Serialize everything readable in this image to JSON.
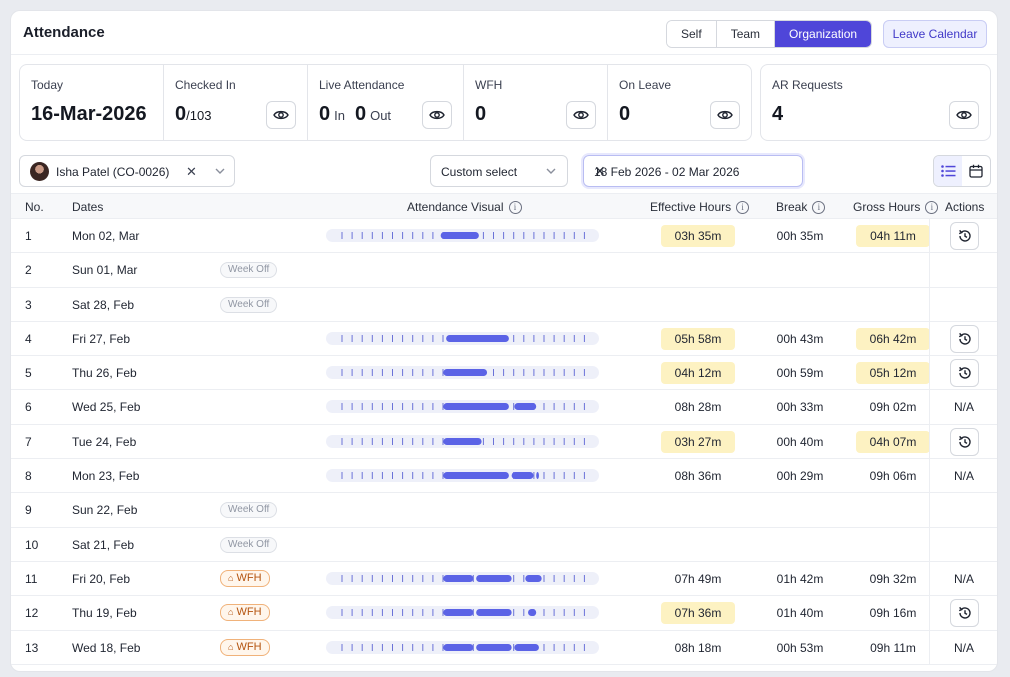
{
  "header": {
    "title": "Attendance",
    "tabs": [
      {
        "label": "Self",
        "active": false
      },
      {
        "label": "Team",
        "active": false
      },
      {
        "label": "Organization",
        "active": true
      }
    ],
    "leave_calendar_label": "Leave Calendar"
  },
  "stats": {
    "today": {
      "label": "Today",
      "value": "16-Mar-2026"
    },
    "checked_in": {
      "label": "Checked In",
      "value": "0",
      "total": "/103"
    },
    "live": {
      "label": "Live Attendance",
      "in_value": "0",
      "in_label": "In",
      "out_value": "0",
      "out_label": "Out"
    },
    "wfh": {
      "label": "WFH",
      "value": "0"
    },
    "on_leave": {
      "label": "On Leave",
      "value": "0"
    },
    "ar_requests": {
      "label": "AR Requests",
      "value": "4"
    }
  },
  "filters": {
    "employee": "Isha Patel (CO-0026)",
    "range_select": "Custom select",
    "date_range": "18 Feb 2026 - 02 Mar 2026"
  },
  "table": {
    "columns": {
      "no": "No.",
      "dates": "Dates",
      "visual": "Attendance Visual",
      "effective": "Effective Hours",
      "break": "Break",
      "gross": "Gross Hours",
      "actions": "Actions"
    },
    "rows": [
      {
        "no": "1",
        "date": "Mon 02, Mar",
        "badge": "",
        "effective": "03h 35m",
        "break": "00h 35m",
        "gross": "04h 11m",
        "highlight": true,
        "action": "regularize",
        "visual": [
          [
            0.42,
            0.56
          ]
        ]
      },
      {
        "no": "2",
        "date": "Sun 01, Mar",
        "badge": "Week Off",
        "effective": "",
        "break": "",
        "gross": "",
        "highlight": false,
        "action": "",
        "visual": []
      },
      {
        "no": "3",
        "date": "Sat 28, Feb",
        "badge": "Week Off",
        "effective": "",
        "break": "",
        "gross": "",
        "highlight": false,
        "action": "",
        "visual": []
      },
      {
        "no": "4",
        "date": "Fri 27, Feb",
        "badge": "",
        "effective": "05h 58m",
        "break": "00h 43m",
        "gross": "06h 42m",
        "highlight": true,
        "action": "regularize",
        "visual": [
          [
            0.44,
            0.67
          ]
        ]
      },
      {
        "no": "5",
        "date": "Thu 26, Feb",
        "badge": "",
        "effective": "04h 12m",
        "break": "00h 59m",
        "gross": "05h 12m",
        "highlight": true,
        "action": "regularize",
        "visual": [
          [
            0.43,
            0.59
          ]
        ]
      },
      {
        "no": "6",
        "date": "Wed 25, Feb",
        "badge": "",
        "effective": "08h 28m",
        "break": "00h 33m",
        "gross": "09h 02m",
        "highlight": false,
        "action": "N/A",
        "visual": [
          [
            0.43,
            0.67
          ],
          [
            0.69,
            0.77
          ]
        ]
      },
      {
        "no": "7",
        "date": "Tue 24, Feb",
        "badge": "",
        "effective": "03h 27m",
        "break": "00h 40m",
        "gross": "04h 07m",
        "highlight": true,
        "action": "regularize",
        "visual": [
          [
            0.43,
            0.57
          ]
        ]
      },
      {
        "no": "8",
        "date": "Mon 23, Feb",
        "badge": "",
        "effective": "08h 36m",
        "break": "00h 29m",
        "gross": "09h 06m",
        "highlight": false,
        "action": "N/A",
        "visual": [
          [
            0.43,
            0.67
          ],
          [
            0.68,
            0.76
          ],
          [
            0.77,
            0.78
          ]
        ]
      },
      {
        "no": "9",
        "date": "Sun 22, Feb",
        "badge": "Week Off",
        "effective": "",
        "break": "",
        "gross": "",
        "highlight": false,
        "action": "",
        "visual": []
      },
      {
        "no": "10",
        "date": "Sat 21, Feb",
        "badge": "Week Off",
        "effective": "",
        "break": "",
        "gross": "",
        "highlight": false,
        "action": "",
        "visual": []
      },
      {
        "no": "11",
        "date": "Fri 20, Feb",
        "badge": "WFH",
        "effective": "07h 49m",
        "break": "01h 42m",
        "gross": "09h 32m",
        "highlight": false,
        "action": "N/A",
        "visual": [
          [
            0.43,
            0.54
          ],
          [
            0.55,
            0.68
          ],
          [
            0.73,
            0.79
          ]
        ]
      },
      {
        "no": "12",
        "date": "Thu 19, Feb",
        "badge": "WFH",
        "effective": "07h 36m",
        "break": "01h 40m",
        "gross": "09h 16m",
        "highlight_effective": true,
        "highlight": false,
        "action": "regularize",
        "visual": [
          [
            0.43,
            0.54
          ],
          [
            0.55,
            0.68
          ],
          [
            0.74,
            0.77
          ]
        ]
      },
      {
        "no": "13",
        "date": "Wed 18, Feb",
        "badge": "WFH",
        "effective": "08h 18m",
        "break": "00h 53m",
        "gross": "09h 11m",
        "highlight": false,
        "action": "N/A",
        "visual": [
          [
            0.43,
            0.54
          ],
          [
            0.55,
            0.68
          ],
          [
            0.69,
            0.78
          ]
        ]
      }
    ]
  },
  "colors": {
    "accent": "#4f46d9",
    "bar": "#5b63e6",
    "highlight": "#fdf2c2",
    "wfh": "#b4540f"
  }
}
